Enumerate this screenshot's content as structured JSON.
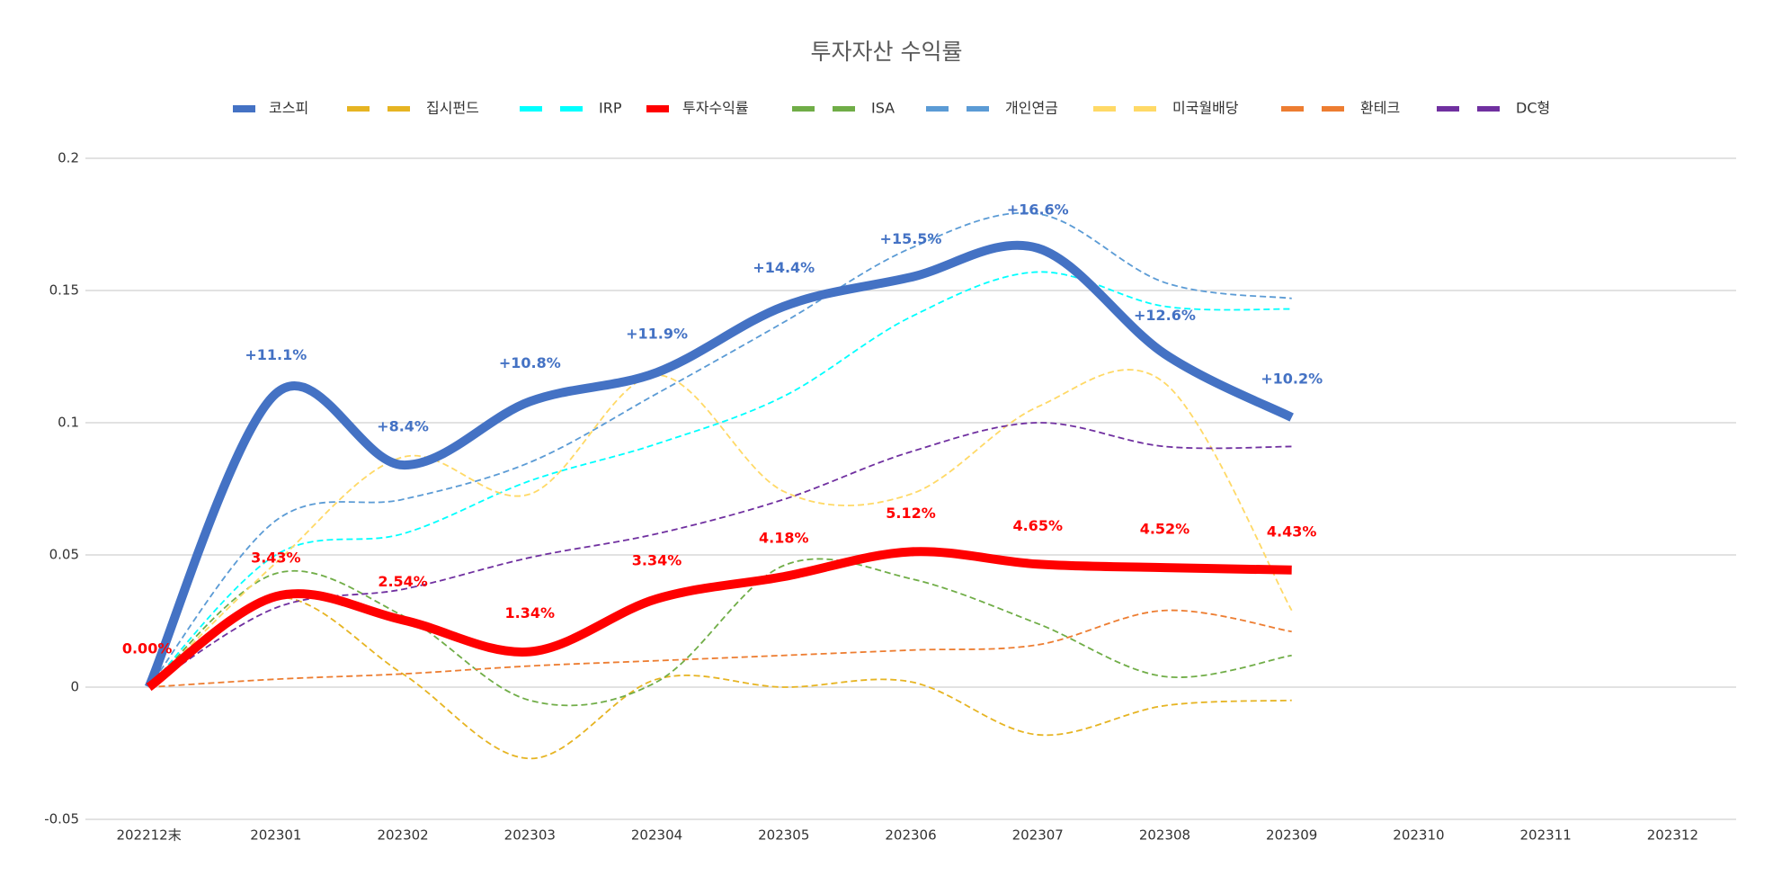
{
  "chart_data": {
    "type": "line",
    "title": "투자자산 수익률",
    "categories": [
      "202212末",
      "202301",
      "202302",
      "202303",
      "202304",
      "202305",
      "202306",
      "202307",
      "202308",
      "202309",
      "202310",
      "202311",
      "202312"
    ],
    "ylim": [
      -0.05,
      0.2
    ],
    "yticks": [
      -0.05,
      0,
      0.05,
      0.1,
      0.15,
      0.2
    ],
    "grid": true,
    "legend": "top",
    "smooth": true,
    "series": [
      {
        "name": "코스피",
        "color": "#4472c4",
        "style": "solid",
        "values": [
          0,
          0.111,
          0.084,
          0.108,
          0.119,
          0.144,
          0.155,
          0.166,
          0.126,
          0.102,
          null,
          null,
          null
        ],
        "value_labels": [
          null,
          "+11.1%",
          "+8.4%",
          "+10.8%",
          "+11.9%",
          "+14.4%",
          "+15.5%",
          "+16.6%",
          "+12.6%",
          "+10.2%",
          null,
          null,
          null
        ]
      },
      {
        "name": "집시펀드",
        "color": "#e6b422",
        "style": "dashed",
        "values": [
          0,
          0.034,
          0.005,
          -0.027,
          0.003,
          0,
          0.002,
          -0.018,
          -0.007,
          -0.005,
          null,
          null,
          null
        ]
      },
      {
        "name": "IRP",
        "color": "#00ffff",
        "style": "dashed",
        "values": [
          0,
          0.05,
          0.058,
          0.078,
          0.092,
          0.11,
          0.14,
          0.157,
          0.144,
          0.143,
          null,
          null,
          null
        ]
      },
      {
        "name": "투자수익률",
        "color": "#ff0000",
        "style": "solid",
        "values": [
          0,
          0.0343,
          0.0254,
          0.0134,
          0.0334,
          0.0418,
          0.0512,
          0.0465,
          0.0452,
          0.0443,
          null,
          null,
          null
        ],
        "value_labels": [
          "0.00%",
          "3.43%",
          "2.54%",
          "1.34%",
          "3.34%",
          "4.18%",
          "5.12%",
          "4.65%",
          "4.52%",
          "4.43%",
          null,
          null,
          null
        ]
      },
      {
        "name": "ISA",
        "color": "#70ad47",
        "style": "dashed",
        "values": [
          0,
          0.043,
          0.027,
          -0.005,
          0.002,
          0.046,
          0.041,
          0.024,
          0.004,
          0.012,
          null,
          null,
          null
        ]
      },
      {
        "name": "개인연금",
        "color": "#5b9bd5",
        "style": "dashed",
        "values": [
          0,
          0.063,
          0.071,
          0.085,
          0.111,
          0.138,
          0.166,
          0.179,
          0.153,
          0.147,
          null,
          null,
          null
        ]
      },
      {
        "name": "미국월배당",
        "color": "#ffd966",
        "style": "dashed",
        "values": [
          0,
          0.047,
          0.087,
          0.073,
          0.118,
          0.074,
          0.073,
          0.106,
          0.115,
          0.029,
          null,
          null,
          null
        ]
      },
      {
        "name": "환테크",
        "color": "#ed7d31",
        "style": "dashed",
        "values": [
          0,
          0.003,
          0.005,
          0.008,
          0.01,
          0.012,
          0.014,
          0.016,
          0.029,
          0.021,
          null,
          null,
          null
        ]
      },
      {
        "name": "DC형",
        "color": "#7030a0",
        "style": "dashed",
        "values": [
          0,
          0.03,
          0.037,
          0.049,
          0.058,
          0.071,
          0.089,
          0.1,
          0.091,
          0.091,
          null,
          null,
          null
        ]
      }
    ]
  }
}
